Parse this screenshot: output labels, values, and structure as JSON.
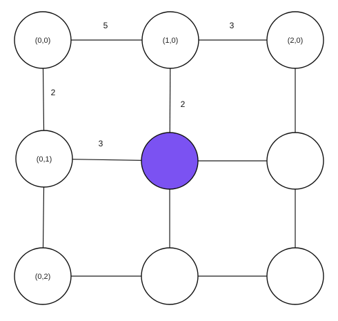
{
  "colors": {
    "node_fill": "#ffffff",
    "highlight_fill": "#7b52f2"
  },
  "nodes": [
    {
      "id": "n00",
      "label": "(0,0)",
      "highlighted": false
    },
    {
      "id": "n10",
      "label": "(1,0)",
      "highlighted": false
    },
    {
      "id": "n20",
      "label": "(2,0)",
      "highlighted": false
    },
    {
      "id": "n01",
      "label": "(0,1)",
      "highlighted": false
    },
    {
      "id": "n11",
      "label": "",
      "highlighted": true
    },
    {
      "id": "n21",
      "label": "",
      "highlighted": false
    },
    {
      "id": "n02",
      "label": "(0,2)",
      "highlighted": false
    },
    {
      "id": "n12",
      "label": "",
      "highlighted": false
    },
    {
      "id": "n22",
      "label": "",
      "highlighted": false
    }
  ],
  "edges": [
    {
      "from": "n00",
      "to": "n10",
      "weight": "5"
    },
    {
      "from": "n10",
      "to": "n20",
      "weight": "3"
    },
    {
      "from": "n00",
      "to": "n01",
      "weight": "2"
    },
    {
      "from": "n10",
      "to": "n11",
      "weight": "2"
    },
    {
      "from": "n01",
      "to": "n11",
      "weight": "3"
    },
    {
      "from": "n20",
      "to": "n21",
      "weight": ""
    },
    {
      "from": "n11",
      "to": "n21",
      "weight": ""
    },
    {
      "from": "n01",
      "to": "n02",
      "weight": ""
    },
    {
      "from": "n11",
      "to": "n12",
      "weight": ""
    },
    {
      "from": "n21",
      "to": "n22",
      "weight": ""
    },
    {
      "from": "n02",
      "to": "n12",
      "weight": ""
    },
    {
      "from": "n12",
      "to": "n22",
      "weight": ""
    }
  ]
}
